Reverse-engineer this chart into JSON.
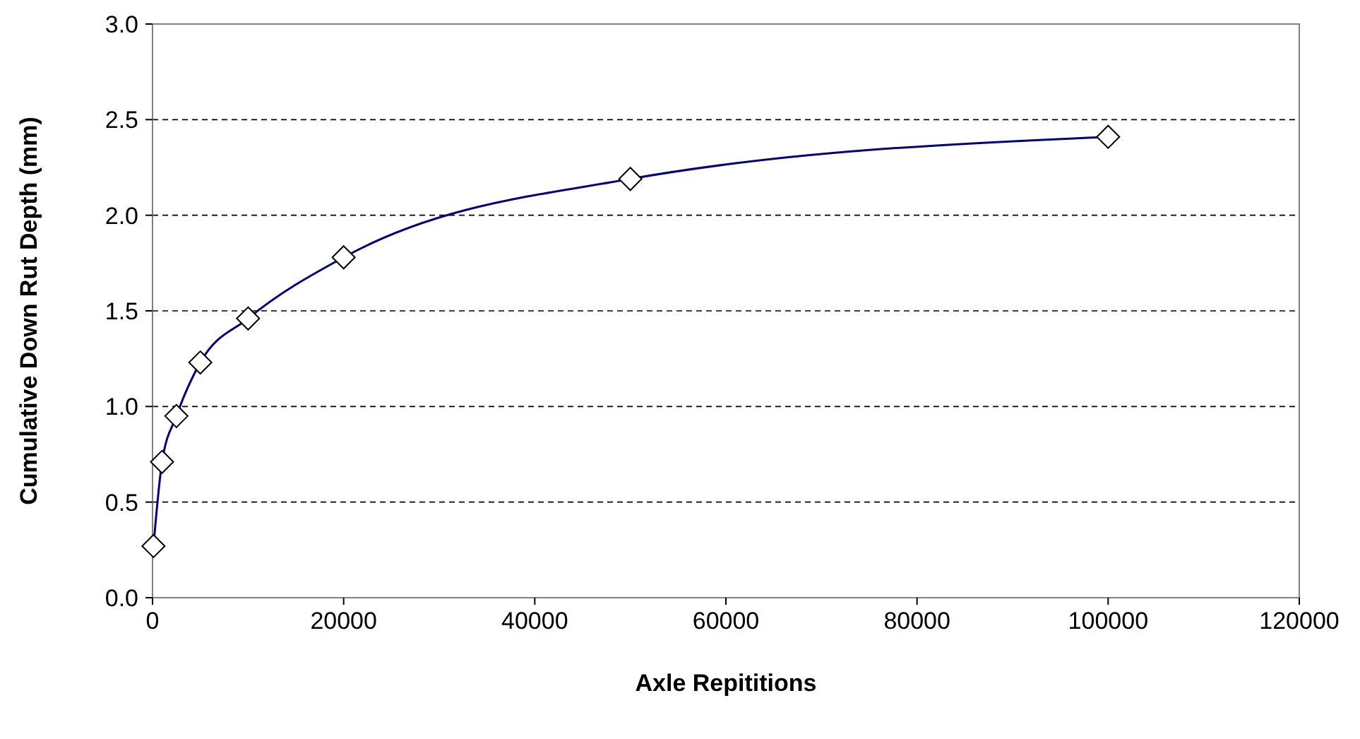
{
  "chart_data": {
    "type": "line",
    "xlabel": "Axle Repititions",
    "ylabel": "Cumulative Down Rut Depth (mm)",
    "x": [
      100,
      1000,
      2500,
      5000,
      10000,
      20000,
      50000,
      100000
    ],
    "series": [
      {
        "color": "#000080",
        "values": [
          0.27,
          0.71,
          0.95,
          1.23,
          1.46,
          1.78,
          2.19,
          2.41
        ]
      }
    ],
    "xlim": [
      0,
      120000
    ],
    "xticks": [
      0,
      20000,
      40000,
      60000,
      80000,
      100000,
      120000
    ],
    "ylim": [
      0,
      3
    ],
    "yticks": [
      {
        "value": 0,
        "label": "0.0"
      },
      {
        "value": 0.5,
        "label": "0.5"
      },
      {
        "value": 1,
        "label": "1.0"
      },
      {
        "value": 1.5,
        "label": "1.5"
      },
      {
        "value": 2,
        "label": "2.0"
      },
      {
        "value": 2.5,
        "label": "2.5"
      },
      {
        "value": 3,
        "label": "3.0"
      }
    ],
    "grid": "y",
    "marker": "diamond",
    "line_style": "solid"
  }
}
